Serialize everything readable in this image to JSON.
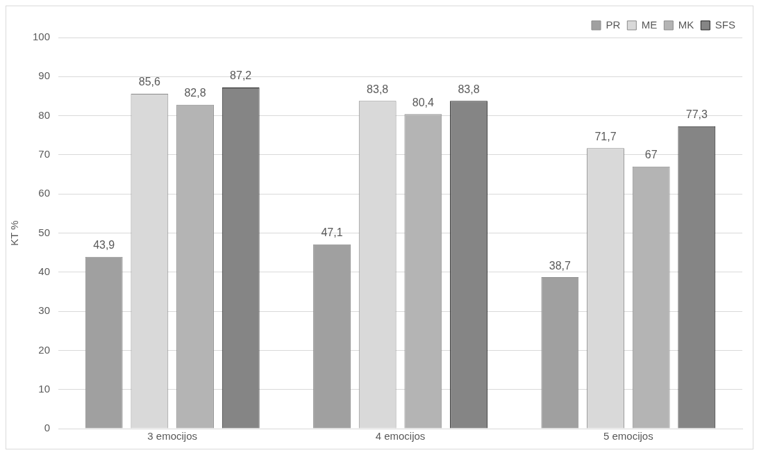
{
  "chart_data": {
    "type": "bar",
    "ylabel": "KT %",
    "categories": [
      "3 emocijos",
      "4 emocijos",
      "5 emocijos"
    ],
    "series": [
      {
        "name": "PR",
        "color": "#a0a0a0",
        "values": [
          43.9,
          47.1,
          38.7
        ],
        "value_labels": [
          "43,9",
          "47,1",
          "38,7"
        ]
      },
      {
        "name": "ME",
        "color": "#d9d9d9",
        "values": [
          85.6,
          83.8,
          71.7
        ],
        "value_labels": [
          "85,6",
          "83,8",
          "71,7"
        ]
      },
      {
        "name": "MK",
        "color": "#b4b4b4",
        "values": [
          82.8,
          80.4,
          67
        ],
        "value_labels": [
          "82,8",
          "80,4",
          "67"
        ]
      },
      {
        "name": "SFS",
        "color": "#858585",
        "values": [
          87.2,
          83.8,
          77.3
        ],
        "value_labels": [
          "87,2",
          "83,8",
          "77,3"
        ]
      }
    ],
    "ylim": [
      0,
      100
    ],
    "yticks": [
      0,
      10,
      20,
      30,
      40,
      50,
      60,
      70,
      80,
      90,
      100
    ],
    "grid": "y",
    "legend": "top right"
  }
}
